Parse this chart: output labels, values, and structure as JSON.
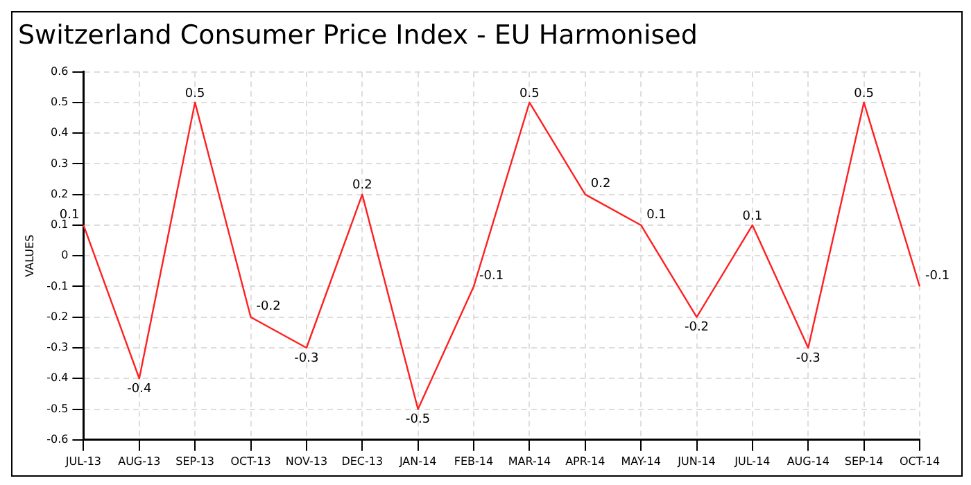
{
  "chart_data": {
    "type": "line",
    "title": "Switzerland Consumer Price Index - EU Harmonised",
    "ylabel": "VALUES",
    "categories": [
      "JUL-13",
      "AUG-13",
      "SEP-13",
      "OCT-13",
      "NOV-13",
      "DEC-13",
      "JAN-14",
      "FEB-14",
      "MAR-14",
      "APR-14",
      "MAY-14",
      "JUN-14",
      "JUL-14",
      "AUG-14",
      "SEP-14",
      "OCT-14"
    ],
    "series": [
      {
        "color": "#ff2020",
        "values": [
          0.1,
          -0.4,
          0.5,
          -0.2,
          -0.3,
          0.2,
          -0.5,
          -0.1,
          0.5,
          0.2,
          0.1,
          -0.2,
          0.1,
          -0.3,
          0.5,
          -0.1
        ]
      }
    ],
    "ylim": [
      -0.6,
      0.6
    ],
    "yticks": [
      -0.6,
      -0.5,
      -0.4,
      -0.3,
      -0.2,
      -0.1,
      0,
      0.1,
      0.2,
      0.3,
      0.4,
      0.5,
      0.6
    ],
    "grid": true,
    "legend": false,
    "marker": "none",
    "line_style": "solid",
    "data_labels": true
  }
}
